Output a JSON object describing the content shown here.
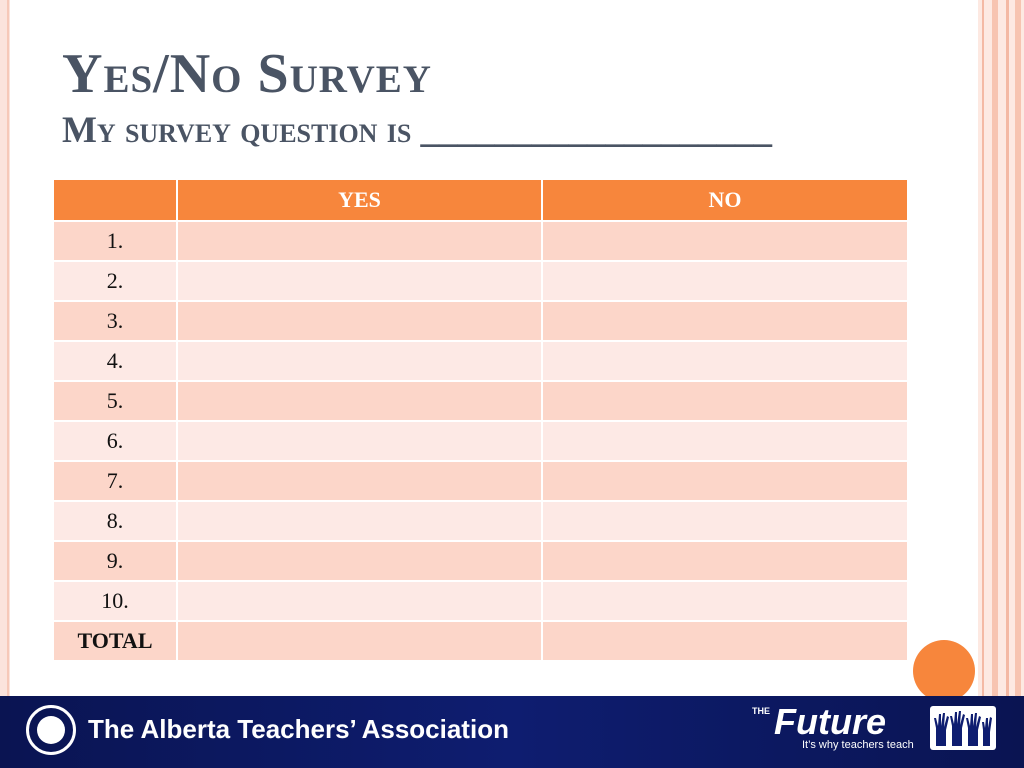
{
  "slide": {
    "title": "Yes/No Survey",
    "subtitle": "My survey question is ___________________"
  },
  "table": {
    "headers": [
      "",
      "YES",
      "NO"
    ],
    "rows": [
      {
        "label": "1.",
        "yes": "",
        "no": ""
      },
      {
        "label": "2.",
        "yes": "",
        "no": ""
      },
      {
        "label": "3.",
        "yes": "",
        "no": ""
      },
      {
        "label": "4.",
        "yes": "",
        "no": ""
      },
      {
        "label": "5.",
        "yes": "",
        "no": ""
      },
      {
        "label": "6.",
        "yes": "",
        "no": ""
      },
      {
        "label": "7.",
        "yes": "",
        "no": ""
      },
      {
        "label": "8.",
        "yes": "",
        "no": ""
      },
      {
        "label": "9.",
        "yes": "",
        "no": ""
      },
      {
        "label": "10.",
        "yes": "",
        "no": ""
      },
      {
        "label": "TOTAL",
        "yes": "",
        "no": ""
      }
    ]
  },
  "footer": {
    "association": "The Alberta Teachers’ Association",
    "future_prefix": "THE",
    "future_word": "Future",
    "future_tagline": "It’s why teachers teach",
    "seal_icon": "ata-seal-icon",
    "hands_icon": "raised-hands-icon"
  },
  "colors": {
    "accent": "#f7863c",
    "title_text": "#4a5464",
    "row_odd": "#fcd6c9",
    "row_even": "#fde9e5",
    "footer_bg": "#0e1d70"
  }
}
